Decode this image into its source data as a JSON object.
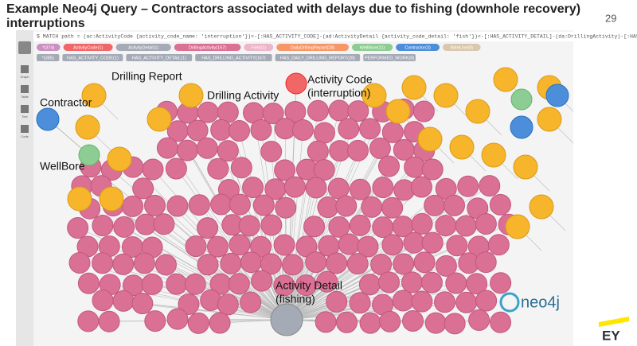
{
  "slide": {
    "title": "Example Neo4j Query – Contractors associated with delays due to fishing (downhole recovery) interruptions",
    "page_number": "29",
    "query": "$ MATCH path = (ac:ActivityCode {activity_code_name: 'interruption'})<-[:HAS_ACTIVITY_CODE]-(ad:ActivityDetail {activity_code_detail: 'fish'})<-[:HAS_ACTIVITY_DETAIL]-(da:DrillingActivity)-[:HAS_DR...",
    "sidebar": [
      "Graph",
      "Table",
      "Text",
      "Code"
    ],
    "node_labels": [
      {
        "text": "*(374)",
        "color": "#c990c0"
      },
      {
        "text": "ActivityCode(1)",
        "color": "#f16667"
      },
      {
        "text": "ActivityDetail(1)",
        "color": "#a5abb6"
      },
      {
        "text": "DrillingActivity(167)",
        "color": "#da7194"
      },
      {
        "text": "Field(1)",
        "color": "#ecb5c9"
      },
      {
        "text": "DailyDrillingReport(28)",
        "color": "#f79767"
      },
      {
        "text": "WellBore(11)",
        "color": "#8dcc93"
      },
      {
        "text": "Contractor(3)",
        "color": "#4c8eda"
      },
      {
        "text": "WireLine(8)",
        "color": "#d9c8ae"
      }
    ],
    "relationship_labels": [
      "*(385)",
      "HAS_ACTIVITY_CODE(1)",
      "HAS_ACTIVITY_DETAIL(1)",
      "HAS_DRILLING_ACTIVITY(167)",
      "HAS_DAILY_DRILLING_REPORT(28)",
      "PERFORMED_WORK(8)"
    ],
    "callouts": {
      "drilling_report": [
        "Drilling Report"
      ],
      "activity_code": [
        "Activity Code",
        "(interruption)"
      ],
      "contractor": [
        "Contractor"
      ],
      "drilling_activity": [
        "Drilling Activity"
      ],
      "wellbore": [
        "WellBore"
      ],
      "activity_detail": [
        "Activity Detail",
        "(fishing)"
      ]
    },
    "neo4j_logo": "neo4j",
    "ey_logo": "EY"
  }
}
